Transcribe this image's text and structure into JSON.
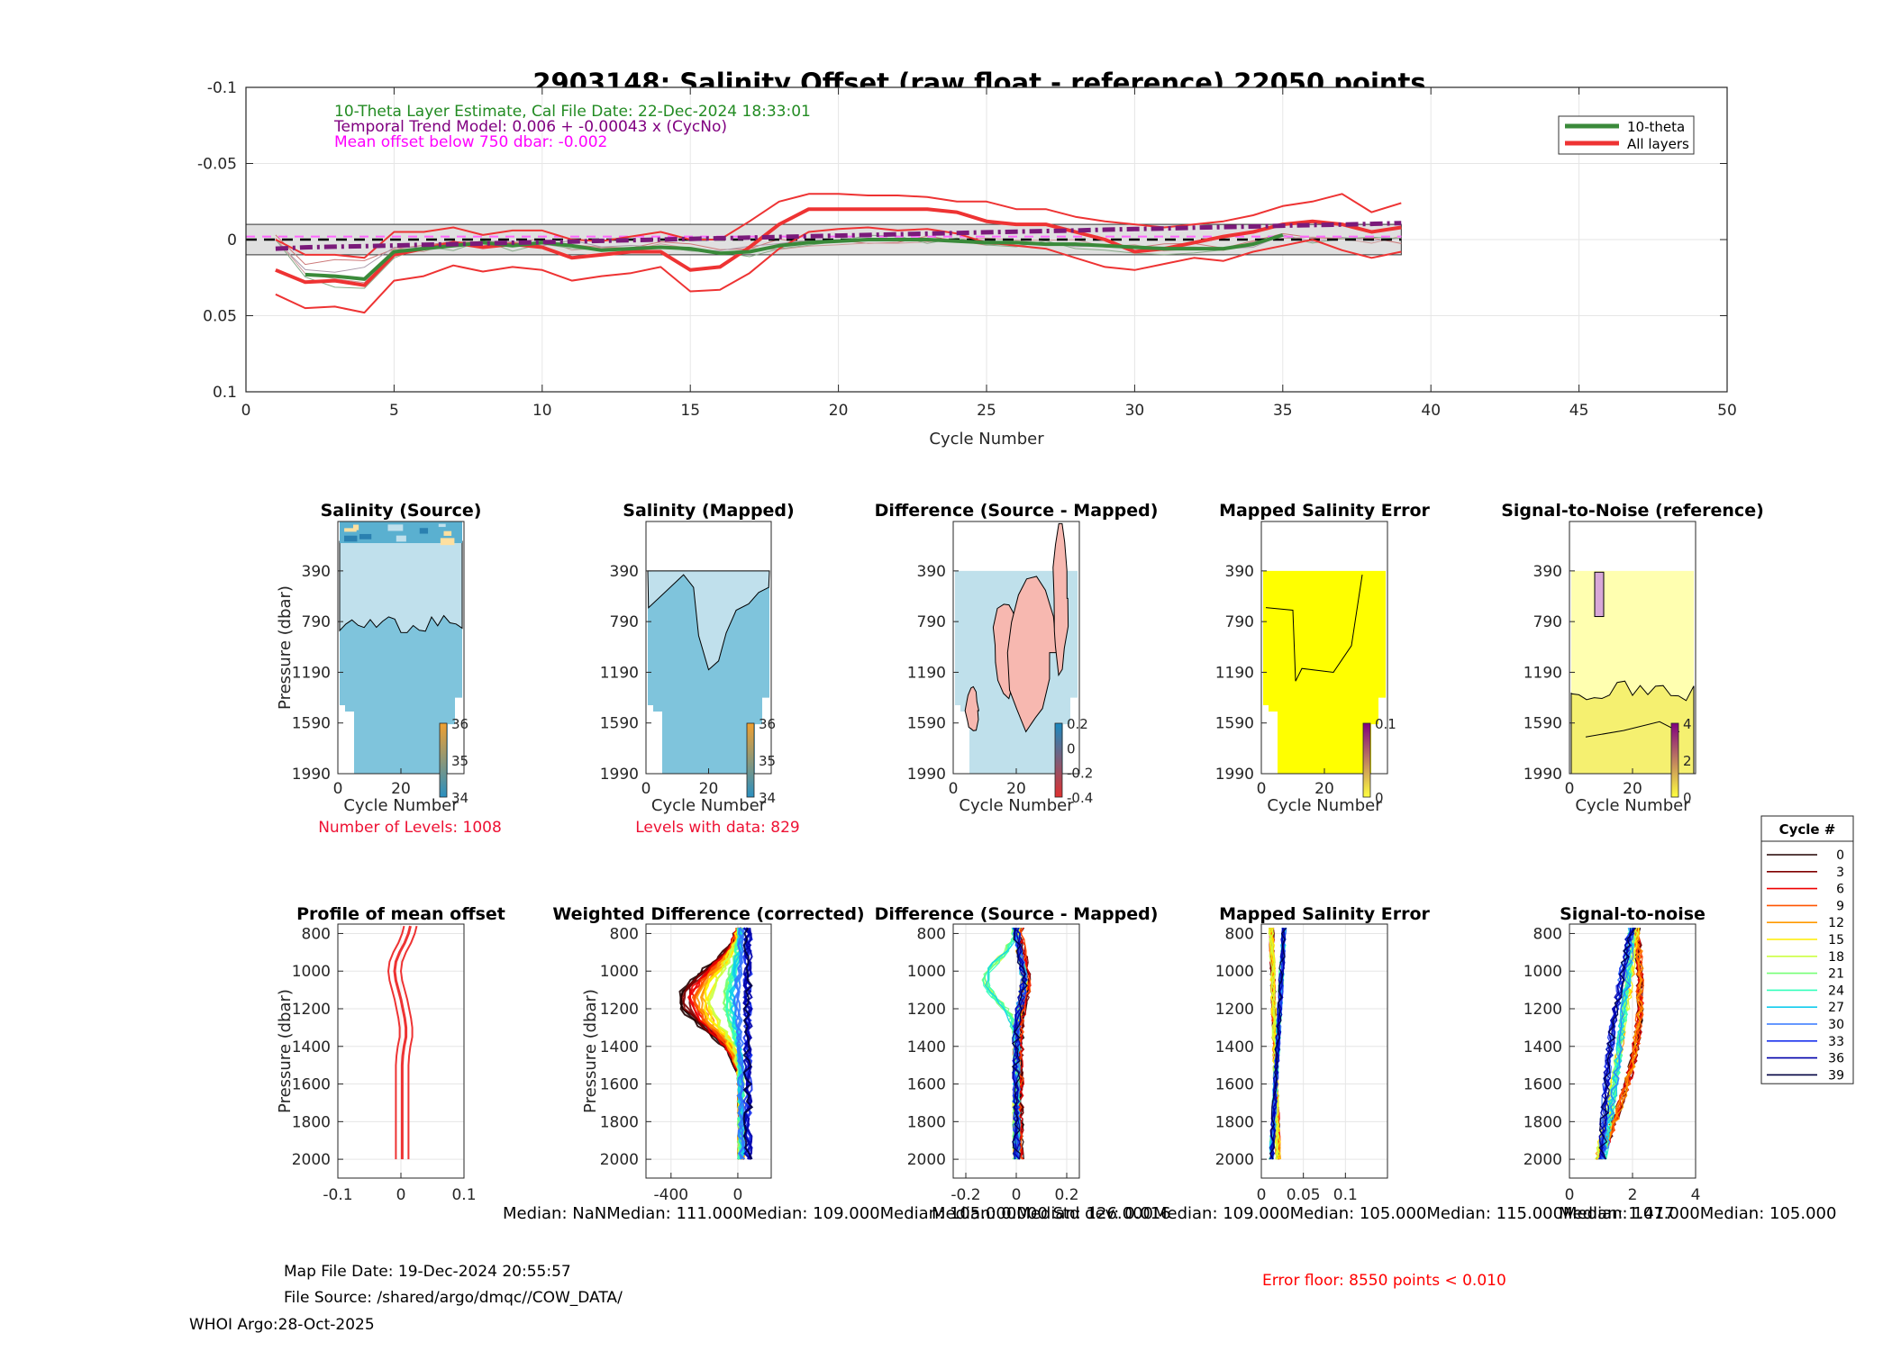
{
  "figure": {
    "main_title": "2903148: Salinity Offset (raw float - reference)   22050 points",
    "annotations": {
      "line1": "10-Theta Layer Estimate, Cal File Date: 22-Dec-2024 18:33:01",
      "line2": "Temporal Trend Model: 0.006 + -0.00043 x (CycNo)",
      "line3": "Mean offset below 750 dbar: -0.002"
    },
    "legend": [
      "10-theta",
      "All layers"
    ],
    "footer": {
      "map_file_date": "Map File Date: 19-Dec-2024 20:55:57",
      "file_source": "File Source: /shared/argo/dmqc//COW_DATA/",
      "whoi": "WHOI Argo:28-Oct-2025",
      "error_floor": "Error floor:  8550 points < 0.010",
      "medians": "Median:      NaNMedian: 111.000Median: 109.000Median: 105.000Median: 126.000Median: 109.000Median: 105.000Median: 115.000Median: 107.000Median: 105.000",
      "overlay_medians": "Median: 0.000 Std dev: 0.016   Median: 1.417"
    },
    "colors": {
      "ten_theta": "#3a8a3a",
      "all_layers": "#ee3333",
      "trend": "#7a1a7a",
      "salt_lo": "#7fc4dc",
      "salt_hi": "#c0e0ec",
      "diff_pos": "#f7b8b0",
      "diff_neg": "#bfe0eb",
      "error_fill": "#ffff00",
      "snr_fill": "#ffffb0",
      "red_text": "#ff0000"
    }
  },
  "chart_data": [
    {
      "id": "main_offset",
      "type": "line",
      "title": "2903148: Salinity Offset (raw float - reference)   22050 points",
      "xlabel": "Cycle Number",
      "ylabel": "",
      "xlim": [
        0,
        50
      ],
      "ylim": [
        -0.1,
        0.1
      ],
      "y_reversed": true,
      "xticks": [
        0,
        5,
        10,
        15,
        20,
        25,
        30,
        35,
        40,
        45,
        50
      ],
      "yticks": [
        -0.1,
        -0.05,
        0,
        0.05,
        0.1
      ],
      "ytick_labels": [
        "-0.1",
        "-0.05",
        "0",
        "0.05",
        "0.1"
      ],
      "grid": true,
      "legend_position": "top-right",
      "x": [
        1,
        2,
        3,
        4,
        5,
        6,
        7,
        8,
        9,
        10,
        11,
        12,
        13,
        14,
        15,
        16,
        17,
        18,
        19,
        20,
        21,
        22,
        23,
        24,
        25,
        26,
        27,
        28,
        29,
        30,
        31,
        32,
        33,
        34,
        35,
        36,
        37,
        38,
        39
      ],
      "series": [
        {
          "name": "All layers",
          "values": [
            0.02,
            0.028,
            0.027,
            0.03,
            0.01,
            0.006,
            0.002,
            0.005,
            0.003,
            0.005,
            0.012,
            0.01,
            0.008,
            0.008,
            0.02,
            0.018,
            0.005,
            -0.01,
            -0.02,
            -0.02,
            -0.02,
            -0.02,
            -0.02,
            -0.018,
            -0.012,
            -0.01,
            -0.01,
            -0.005,
            0.0,
            0.008,
            0.006,
            0.002,
            -0.002,
            -0.005,
            -0.01,
            -0.012,
            -0.01,
            -0.005,
            -0.008
          ]
        },
        {
          "name": "All layers upper",
          "values": [
            0.0,
            0.01,
            0.01,
            0.012,
            -0.005,
            -0.005,
            -0.008,
            -0.003,
            -0.006,
            -0.006,
            0.0,
            0.001,
            -0.002,
            -0.005,
            0.0,
            0.0,
            -0.012,
            -0.025,
            -0.03,
            -0.03,
            -0.029,
            -0.029,
            -0.028,
            -0.025,
            -0.025,
            -0.02,
            -0.02,
            -0.015,
            -0.012,
            -0.01,
            -0.008,
            -0.01,
            -0.012,
            -0.016,
            -0.022,
            -0.025,
            -0.03,
            -0.018,
            -0.024
          ]
        },
        {
          "name": "All layers lower",
          "values": [
            0.036,
            0.045,
            0.044,
            0.048,
            0.027,
            0.024,
            0.017,
            0.021,
            0.018,
            0.02,
            0.027,
            0.024,
            0.022,
            0.018,
            0.034,
            0.033,
            0.022,
            0.006,
            -0.005,
            -0.007,
            -0.008,
            -0.006,
            -0.007,
            -0.004,
            0.002,
            0.004,
            0.006,
            0.012,
            0.018,
            0.02,
            0.016,
            0.012,
            0.014,
            0.008,
            0.004,
            0.0,
            0.007,
            0.012,
            0.008
          ]
        },
        {
          "name": "10-theta",
          "values": [
            null,
            0.023,
            0.024,
            0.026,
            0.008,
            0.006,
            0.004,
            0.002,
            0.004,
            0.002,
            0.004,
            0.007,
            0.006,
            0.005,
            0.006,
            0.009,
            0.008,
            0.004,
            0.002,
            0.001,
            0.0,
            0.0,
            0.0,
            0.001,
            0.002,
            0.002,
            0.003,
            0.003,
            0.004,
            0.005,
            0.006,
            0.006,
            0.006,
            0.003,
            -0.003,
            null,
            null,
            null,
            null
          ]
        },
        {
          "name": "Temporal trend",
          "values": [
            0.006,
            0.0051,
            0.0047,
            0.0043,
            0.0039,
            0.0034,
            0.003,
            0.0026,
            0.0021,
            0.0017,
            0.0013,
            0.0008,
            0.0004,
            0.0,
            -0.0005,
            -0.0009,
            -0.0013,
            -0.0017,
            -0.0022,
            -0.0026,
            -0.003,
            -0.0035,
            -0.0039,
            -0.0043,
            -0.0048,
            -0.0052,
            -0.0056,
            -0.006,
            -0.0065,
            -0.0069,
            -0.0073,
            -0.0078,
            -0.0082,
            -0.0086,
            -0.0091,
            -0.0095,
            -0.0099,
            -0.0103,
            -0.0108
          ]
        }
      ],
      "reference_lines": [
        {
          "label": "Mean offset below 750 dbar",
          "value": -0.002
        },
        {
          "label": "zero",
          "value": 0
        }
      ],
      "error_band": [
        -0.01,
        0.01
      ]
    },
    {
      "id": "salinity_source",
      "type": "heatmap",
      "title": "Salinity (Source)",
      "xlabel": "Cycle Number",
      "ylabel": "Pressure (dbar)",
      "xlim": [
        0,
        40
      ],
      "ylim": [
        0,
        1990
      ],
      "xticks": [
        0,
        20
      ],
      "yticks": [
        390,
        790,
        1190,
        1590,
        1990
      ],
      "colorbar_ticks": [
        34,
        35,
        36
      ],
      "note": "Number of Levels: 1008"
    },
    {
      "id": "salinity_mapped",
      "type": "heatmap",
      "title": "Salinity (Mapped)",
      "xlabel": "Cycle Number",
      "ylabel": "",
      "xlim": [
        0,
        40
      ],
      "ylim": [
        0,
        1990
      ],
      "xticks": [
        0,
        20
      ],
      "yticks": [
        390,
        790,
        1190,
        1590,
        1990
      ],
      "colorbar_ticks": [
        34,
        35,
        36
      ],
      "note": "Levels with data: 829"
    },
    {
      "id": "difference_map",
      "type": "heatmap",
      "title": "Difference (Source - Mapped)",
      "xlabel": "Cycle Number",
      "ylabel": "",
      "xlim": [
        0,
        40
      ],
      "ylim": [
        0,
        1990
      ],
      "xticks": [
        0,
        20
      ],
      "yticks": [
        390,
        790,
        1190,
        1590,
        1990
      ],
      "colorbar_ticks": [
        -0.4,
        -0.2,
        0,
        0.2
      ]
    },
    {
      "id": "mapped_error_map",
      "type": "heatmap",
      "title": "Mapped Salinity Error",
      "xlabel": "Cycle Number",
      "ylabel": "",
      "xlim": [
        0,
        40
      ],
      "ylim": [
        0,
        1990
      ],
      "xticks": [
        0,
        20
      ],
      "yticks": [
        390,
        790,
        1190,
        1590,
        1990
      ],
      "colorbar_ticks": [
        0,
        0.1
      ]
    },
    {
      "id": "snr_map",
      "type": "heatmap",
      "title": "Signal-to-Noise (reference)",
      "xlabel": "Cycle Number",
      "ylabel": "",
      "xlim": [
        0,
        40
      ],
      "ylim": [
        0,
        1990
      ],
      "xticks": [
        0,
        20
      ],
      "yticks": [
        390,
        790,
        1190,
        1590,
        1990
      ],
      "colorbar_ticks": [
        0,
        2,
        4
      ]
    },
    {
      "id": "profile_mean_offset",
      "type": "line",
      "title": "Profile of mean offset",
      "xlabel": "",
      "ylabel": "Pressure (dbar)",
      "xlim": [
        -0.1,
        0.1
      ],
      "ylim": [
        750,
        2100
      ],
      "xticks": [
        -0.1,
        0,
        0.1
      ],
      "yticks": [
        800,
        1000,
        1200,
        1400,
        1600,
        1800,
        2000
      ],
      "pressure": [
        760,
        800,
        850,
        900,
        950,
        1000,
        1050,
        1100,
        1150,
        1200,
        1250,
        1300,
        1350,
        1400,
        1450,
        1500,
        1600,
        1700,
        1800,
        1900,
        2000
      ],
      "series": [
        {
          "name": "mean",
          "values": [
            0.015,
            0.012,
            0.006,
            -0.002,
            -0.008,
            -0.01,
            -0.008,
            -0.004,
            0.0,
            0.003,
            0.006,
            0.008,
            0.008,
            0.005,
            0.003,
            0.002,
            0.002,
            0.002,
            0.002,
            0.002,
            0.002
          ]
        },
        {
          "name": "upper",
          "values": [
            0.025,
            0.022,
            0.016,
            0.008,
            0.002,
            0.0,
            0.002,
            0.006,
            0.01,
            0.013,
            0.016,
            0.018,
            0.018,
            0.015,
            0.013,
            0.012,
            0.012,
            0.012,
            0.012,
            0.012,
            0.012
          ]
        },
        {
          "name": "lower",
          "values": [
            0.005,
            0.002,
            -0.004,
            -0.012,
            -0.018,
            -0.02,
            -0.018,
            -0.014,
            -0.01,
            -0.007,
            -0.004,
            -0.002,
            -0.002,
            -0.005,
            -0.007,
            -0.008,
            -0.008,
            -0.008,
            -0.008,
            -0.008,
            -0.008
          ]
        }
      ]
    },
    {
      "id": "weighted_difference",
      "type": "line",
      "title": "Weighted Difference (corrected)",
      "xlabel": "",
      "ylabel": "Pressure (dbar)",
      "xlim": [
        -550,
        200
      ],
      "ylim": [
        750,
        2100
      ],
      "xticks": [
        -400,
        0
      ],
      "yticks": [
        800,
        1000,
        1200,
        1400,
        1600,
        1800,
        2000
      ]
    },
    {
      "id": "difference_profiles",
      "type": "line",
      "title": "Difference (Source - Mapped)",
      "xlabel": "",
      "ylabel": "",
      "xlim": [
        -0.25,
        0.25
      ],
      "ylim": [
        750,
        2100
      ],
      "xticks": [
        -0.2,
        0,
        0.2
      ],
      "yticks": [
        800,
        1000,
        1200,
        1400,
        1600,
        1800,
        2000
      ]
    },
    {
      "id": "mapped_error_profiles",
      "type": "line",
      "title": "Mapped Salinity Error",
      "xlabel": "",
      "ylabel": "",
      "xlim": [
        0,
        0.15
      ],
      "ylim": [
        750,
        2100
      ],
      "xticks": [
        0,
        0.05,
        0.1
      ],
      "yticks": [
        800,
        1000,
        1200,
        1400,
        1600,
        1800,
        2000
      ]
    },
    {
      "id": "snr_profiles",
      "type": "line",
      "title": "Signal-to-noise",
      "xlabel": "",
      "ylabel": "",
      "xlim": [
        0,
        4
      ],
      "ylim": [
        750,
        2100
      ],
      "xticks": [
        0,
        2,
        4
      ],
      "yticks": [
        800,
        1000,
        1200,
        1400,
        1600,
        1800,
        2000
      ]
    },
    {
      "id": "cycle_legend",
      "type": "legend",
      "title": "Cycle #",
      "entries": [
        "0",
        "3",
        "6",
        "9",
        "12",
        "15",
        "18",
        "21",
        "24",
        "27",
        "30",
        "33",
        "36",
        "39"
      ],
      "entry_colors": [
        "#200000",
        "#800000",
        "#ee0000",
        "#ff5500",
        "#ff9900",
        "#ffee00",
        "#ccff44",
        "#77ff77",
        "#33ffbb",
        "#11ccee",
        "#3377ff",
        "#1a33ee",
        "#0000aa",
        "#000040"
      ]
    }
  ]
}
